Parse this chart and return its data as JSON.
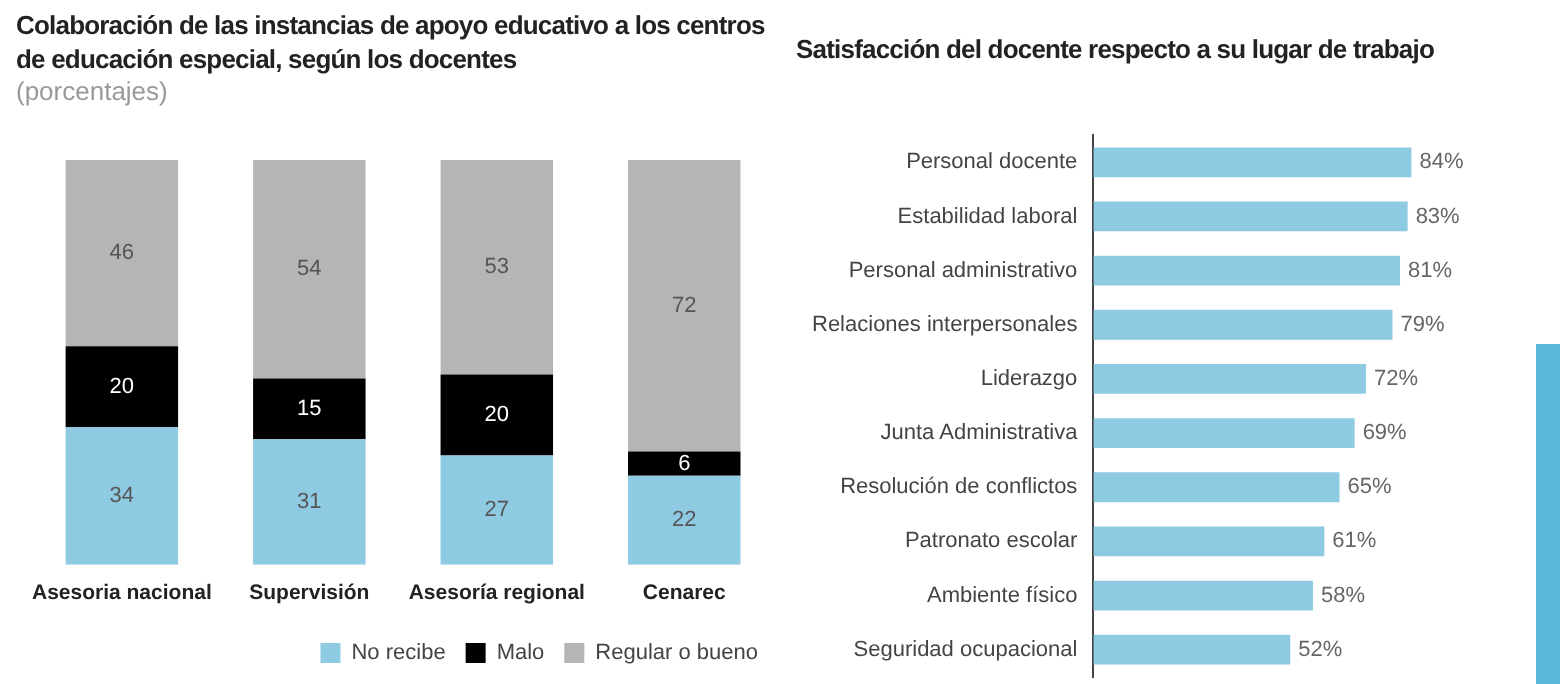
{
  "chart_data": [
    {
      "type": "bar",
      "title": "Colaboración de las instancias de apoyo educativo a los centros de educación especial, según los docentes",
      "subtitle": "(porcentajes)",
      "categories": [
        "Asesoria nacional",
        "Supervisión",
        "Asesoría regional",
        "Cenarec"
      ],
      "stacked": true,
      "data_labels": true,
      "legend": "bottom",
      "grid": false,
      "tick_labels": "x",
      "series": [
        {
          "name": "No recibe",
          "color": "#8fcae3",
          "values": [
            34,
            31,
            27,
            22
          ]
        },
        {
          "name": "Malo",
          "color": "#000000",
          "values": [
            20,
            15,
            20,
            6
          ]
        },
        {
          "name": "Regular o bueno",
          "color": "#b5b5b5",
          "values": [
            46,
            54,
            53,
            72
          ]
        }
      ]
    },
    {
      "type": "bar",
      "orientation": "horizontal",
      "title": "Satisfacción del docente respecto a su lugar de trabajo",
      "categories": [
        "Personal docente",
        "Estabilidad laboral",
        "Personal administrativo",
        "Relaciones interpersonales",
        "Liderazgo",
        "Junta Administrativa",
        "Resolución de conflictos",
        "Patronato escolar",
        "Ambiente físico",
        "Seguridad ocupacional"
      ],
      "values": [
        84,
        83,
        81,
        79,
        72,
        69,
        65,
        61,
        58,
        52
      ],
      "value_labels": [
        "84%",
        "83%",
        "81%",
        "79%",
        "72%",
        "69%",
        "65%",
        "61%",
        "58%",
        "52%"
      ],
      "color": "#8fcae3",
      "grid": false,
      "legend": false,
      "tick_labels": "y"
    }
  ]
}
